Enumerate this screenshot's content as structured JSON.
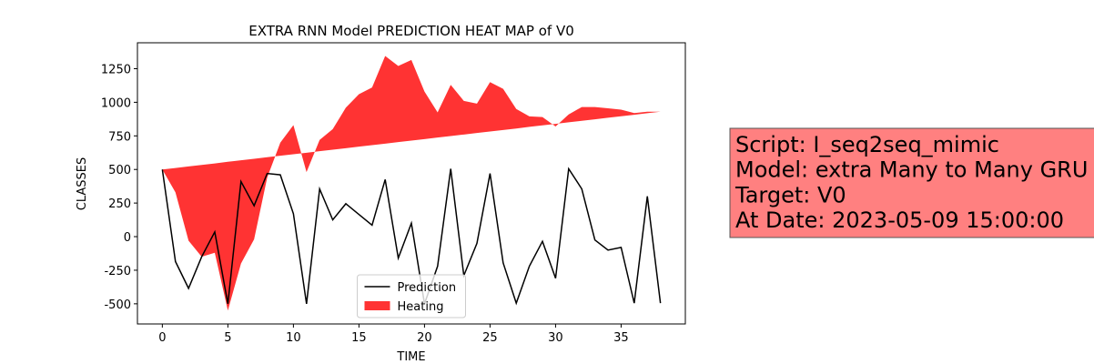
{
  "chart_data": {
    "type": "line",
    "title": "EXTRA RNN Model PREDICTION HEAT MAP of V0",
    "xlabel": "TIME",
    "ylabel": "CLASSES",
    "x": [
      0,
      1,
      2,
      3,
      4,
      5,
      6,
      7,
      8,
      9,
      10,
      11,
      12,
      13,
      14,
      15,
      16,
      17,
      18,
      19,
      20,
      21,
      22,
      23,
      24,
      25,
      26,
      27,
      28,
      29,
      30,
      31,
      32,
      33,
      34,
      35,
      36,
      37,
      38
    ],
    "series": [
      {
        "name": "Prediction",
        "color": "#000000",
        "values": [
          500,
          -185,
          -385,
          -150,
          35,
          -500,
          410,
          230,
          470,
          460,
          170,
          -500,
          355,
          125,
          245,
          165,
          85,
          425,
          -160,
          100,
          -500,
          -220,
          505,
          -290,
          -50,
          470,
          -195,
          -495,
          -220,
          -35,
          -310,
          505,
          355,
          -25,
          -100,
          -80,
          -495,
          300,
          -495
        ]
      },
      {
        "name": "Heating",
        "color": "#ff3333",
        "fill": true,
        "values": [
          500,
          330,
          -30,
          -150,
          -120,
          -550,
          -200,
          -20,
          440,
          700,
          830,
          480,
          720,
          800,
          960,
          1060,
          1110,
          1345,
          1270,
          1315,
          1080,
          925,
          1130,
          1010,
          990,
          1150,
          1100,
          950,
          895,
          890,
          820,
          910,
          965,
          965,
          955,
          945,
          920,
          930,
          930
        ],
        "base": [
          500,
          511,
          523,
          534,
          545,
          557,
          568,
          579,
          591,
          602,
          613,
          624,
          636,
          647,
          658,
          670,
          681,
          692,
          704,
          715,
          726,
          738,
          749,
          760,
          772,
          783,
          794,
          805,
          817,
          828,
          839,
          851,
          862,
          873,
          885,
          896,
          907,
          919,
          930
        ]
      }
    ],
    "xlim": [
      -1.9,
      39.9
    ],
    "ylim": [
      -650,
      1443
    ],
    "xticks": [
      0,
      5,
      10,
      15,
      20,
      25,
      30,
      35
    ],
    "yticks": [
      -500,
      -250,
      0,
      250,
      500,
      750,
      1000,
      1250
    ],
    "legend": "lower center",
    "annotation_lines": [
      "Script: I_seq2seq_mimic",
      "Model: extra Many to Many GRU",
      "Target: V0",
      "At Date: 2023-05-09 15:00:00"
    ]
  }
}
